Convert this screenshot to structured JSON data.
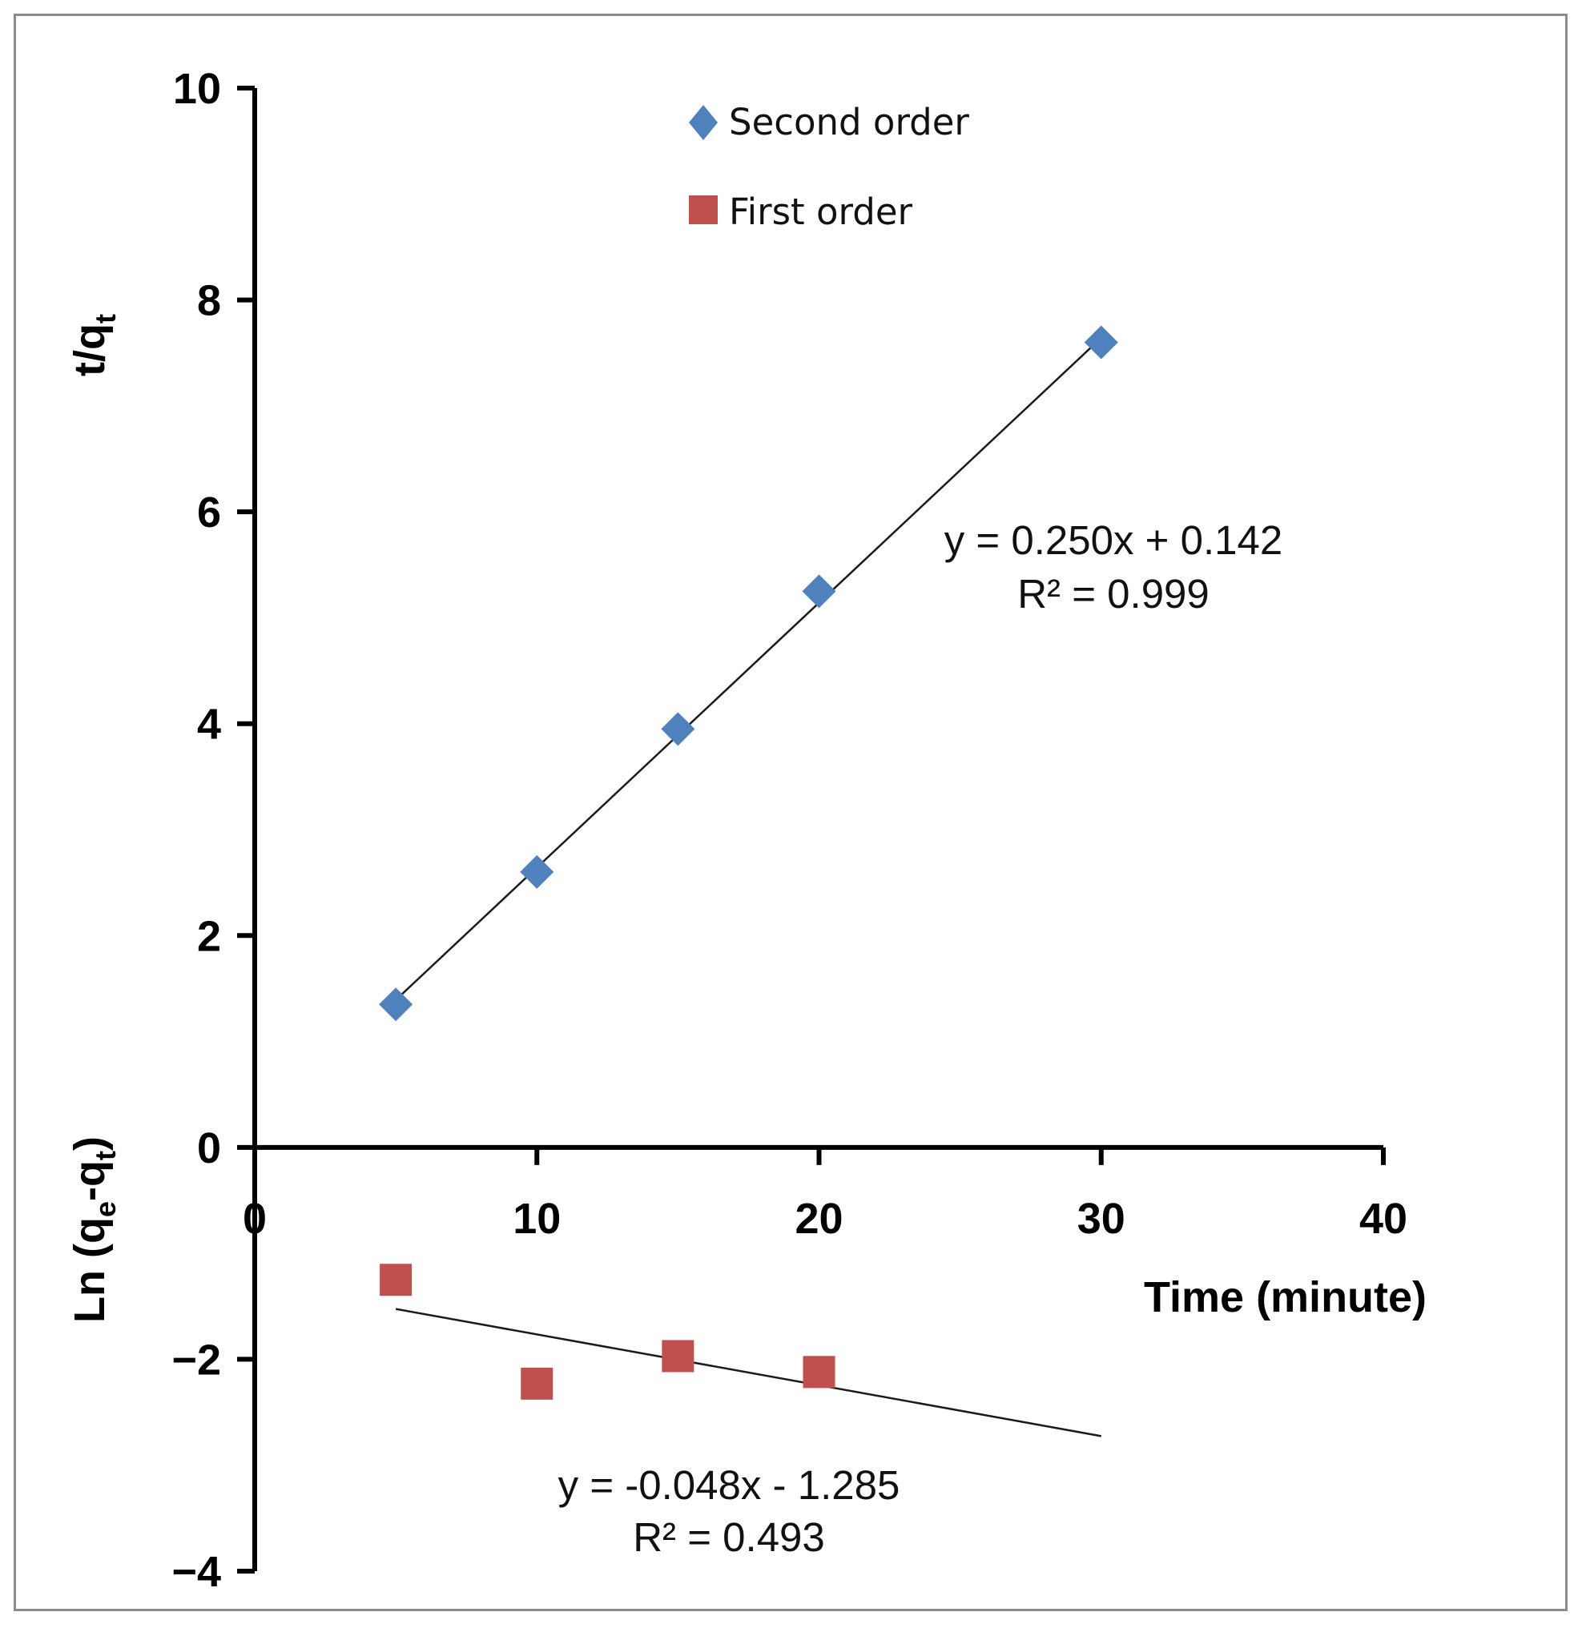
{
  "chart_data": {
    "type": "scatter",
    "title": "",
    "xlabel": "Time  (minute)",
    "ylabel_upper": "t/q",
    "ylabel_upper_sub": "t",
    "ylabel_lower": "Ln (q",
    "ylabel_lower_sub1": "e",
    "ylabel_lower_mid": "-q",
    "ylabel_lower_sub2": "t",
    "ylabel_lower_end": ")",
    "xlim": [
      0,
      40
    ],
    "ylim": [
      -4,
      10
    ],
    "xticks": [
      0,
      10,
      20,
      30,
      40
    ],
    "xtick_labels": [
      "0",
      "10",
      "20",
      "30",
      "40"
    ],
    "yticks": [
      -4,
      -2,
      0,
      2,
      4,
      6,
      8,
      10
    ],
    "ytick_labels": [
      "−4",
      "−2",
      "0",
      "2",
      "4",
      "6",
      "8",
      "10"
    ],
    "grid": false,
    "legend_position": "top",
    "series": [
      {
        "name": "Second order",
        "marker": "diamond",
        "color": "#4F81BD",
        "x": [
          5,
          10,
          15,
          20,
          30
        ],
        "y": [
          1.35,
          2.6,
          3.95,
          5.25,
          7.6
        ],
        "trendline": {
          "slope": 0.25,
          "intercept": 0.142,
          "x_range": [
            5,
            30
          ],
          "equation": "y = 0.250x + 0.142",
          "r2": "R² = 0.999"
        }
      },
      {
        "name": "First order",
        "marker": "square",
        "color": "#C0504D",
        "x": [
          5,
          10,
          15,
          20
        ],
        "y": [
          -1.25,
          -2.23,
          -1.97,
          -2.12
        ],
        "trendline": {
          "slope": -0.048,
          "intercept": -1.285,
          "x_range": [
            5,
            30
          ],
          "equation": "y = -0.048x - 1.285",
          "r2": "R² = 0.493"
        }
      }
    ]
  }
}
